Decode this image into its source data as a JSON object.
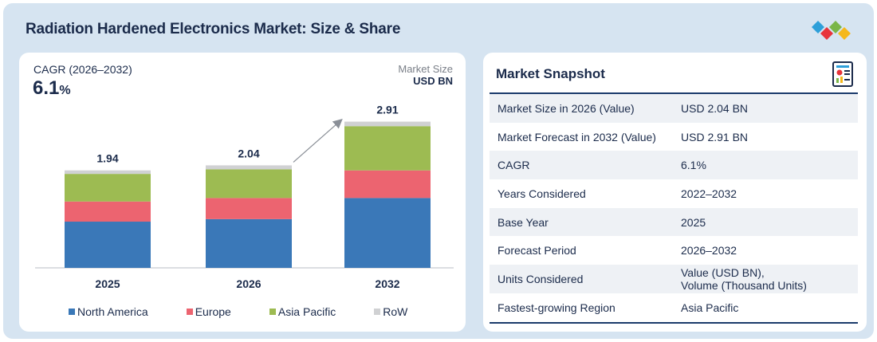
{
  "header": {
    "title": "Radiation Hardened Electronics Market: Size & Share"
  },
  "brand_colors": [
    "#2e9fd9",
    "#e8343b",
    "#7ab648",
    "#f5b81c"
  ],
  "summary": {
    "cagr_label": "CAGR (2026–2032)",
    "cagr_value": "6.1",
    "cagr_unit": "%",
    "market_size_label": "Market Size",
    "market_size_unit": "USD BN"
  },
  "chart_data": {
    "type": "bar",
    "stacked": true,
    "categories": [
      "2025",
      "2026",
      "2032"
    ],
    "series": [
      {
        "name": "North America",
        "color": "#3a78b8",
        "values": [
          0.92,
          0.97,
          1.39
        ]
      },
      {
        "name": "Europe",
        "color": "#ec6470",
        "values": [
          0.4,
          0.42,
          0.55
        ]
      },
      {
        "name": "Asia Pacific",
        "color": "#9dbb52",
        "values": [
          0.55,
          0.57,
          0.88
        ]
      },
      {
        "name": "RoW",
        "color": "#d0d1d3",
        "values": [
          0.07,
          0.08,
          0.09
        ]
      }
    ],
    "totals": [
      "1.94",
      "2.04",
      "2.91"
    ],
    "ylim": [
      0,
      3.3
    ],
    "growth_arrow": {
      "from": "2026",
      "to": "2032"
    },
    "legend_position": "bottom"
  },
  "snapshot": {
    "title": "Market Snapshot",
    "icon": "report-icon",
    "rows": [
      {
        "key": "Market Size in 2026 (Value)",
        "value": "USD 2.04 BN"
      },
      {
        "key": "Market Forecast in 2032 (Value)",
        "value": "USD 2.91 BN"
      },
      {
        "key": "CAGR",
        "value": "6.1%"
      },
      {
        "key": "Years Considered",
        "value": "2022–2032"
      },
      {
        "key": "Base Year",
        "value": "2025"
      },
      {
        "key": "Forecast Period",
        "value": "2026–2032"
      },
      {
        "key": "Units Considered",
        "value": "Value (USD BN),",
        "value2": "Volume (Thousand Units)"
      },
      {
        "key": "Fastest-growing Region",
        "value": "Asia Pacific"
      }
    ]
  }
}
